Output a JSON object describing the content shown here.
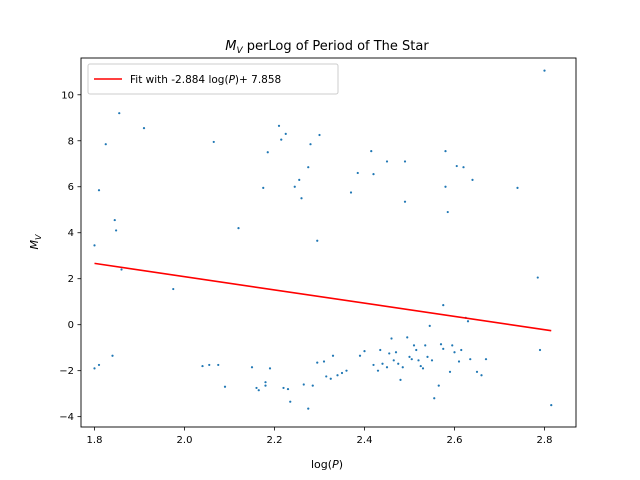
{
  "chart_data": {
    "type": "scatter",
    "title": {
      "base": "M",
      "sub": "V",
      "rest": " perLog of Period of The Star"
    },
    "xlabel": {
      "pre": "log(",
      "italic": "P",
      "post": ")"
    },
    "ylabel": {
      "base": "M",
      "sub": "V"
    },
    "xlim": [
      1.77,
      2.87
    ],
    "ylim": [
      -4.45,
      11.6
    ],
    "xticks": [
      1.8,
      2.0,
      2.2,
      2.4,
      2.6,
      2.8
    ],
    "xtick_labels": [
      "1.8",
      "2.0",
      "2.2",
      "2.4",
      "2.6",
      "2.8"
    ],
    "yticks": [
      -4,
      -2,
      0,
      2,
      4,
      6,
      8,
      10
    ],
    "ytick_labels": [
      "−4",
      "−2",
      "0",
      "2",
      "4",
      "6",
      "8",
      "10"
    ],
    "grid": false,
    "legend": {
      "placement": "top-left",
      "entries": [
        {
          "pre": "Fit with -2.884 log(",
          "italic": "P",
          "post": ")+ 7.858",
          "color": "#ff0000"
        }
      ]
    },
    "fit": {
      "slope": -2.884,
      "intercept": 7.858,
      "x_range": [
        1.8,
        2.815
      ],
      "color": "#ff0000"
    },
    "series": [
      {
        "type": "scatter",
        "color": "#1f77b4",
        "points": [
          [
            1.8,
            3.45
          ],
          [
            1.8,
            -1.9
          ],
          [
            1.81,
            5.85
          ],
          [
            1.81,
            -1.75
          ],
          [
            1.825,
            7.85
          ],
          [
            1.84,
            -1.35
          ],
          [
            1.845,
            4.55
          ],
          [
            1.848,
            4.1
          ],
          [
            1.855,
            9.2
          ],
          [
            1.86,
            2.4
          ],
          [
            1.91,
            8.55
          ],
          [
            1.975,
            1.55
          ],
          [
            2.04,
            -1.8
          ],
          [
            2.055,
            -1.75
          ],
          [
            2.065,
            7.95
          ],
          [
            2.075,
            -1.75
          ],
          [
            2.09,
            -2.7
          ],
          [
            2.12,
            4.2
          ],
          [
            2.15,
            -1.85
          ],
          [
            2.16,
            -2.75
          ],
          [
            2.165,
            -2.85
          ],
          [
            2.175,
            5.95
          ],
          [
            2.18,
            -2.65
          ],
          [
            2.18,
            -2.5
          ],
          [
            2.185,
            7.5
          ],
          [
            2.19,
            -1.9
          ],
          [
            2.21,
            8.65
          ],
          [
            2.215,
            8.05
          ],
          [
            2.22,
            -2.75
          ],
          [
            2.225,
            8.3
          ],
          [
            2.23,
            -2.8
          ],
          [
            2.235,
            -3.35
          ],
          [
            2.245,
            6.0
          ],
          [
            2.255,
            6.3
          ],
          [
            2.26,
            5.5
          ],
          [
            2.265,
            -2.6
          ],
          [
            2.275,
            6.85
          ],
          [
            2.28,
            7.85
          ],
          [
            2.285,
            -2.65
          ],
          [
            2.275,
            -3.65
          ],
          [
            2.295,
            3.65
          ],
          [
            2.295,
            -1.65
          ],
          [
            2.3,
            8.25
          ],
          [
            2.31,
            -1.6
          ],
          [
            2.315,
            -2.25
          ],
          [
            2.325,
            -2.35
          ],
          [
            2.33,
            -1.35
          ],
          [
            2.34,
            -2.2
          ],
          [
            2.35,
            -2.1
          ],
          [
            2.36,
            -2.0
          ],
          [
            2.37,
            5.75
          ],
          [
            2.385,
            6.6
          ],
          [
            2.39,
            -1.35
          ],
          [
            2.4,
            -1.15
          ],
          [
            2.415,
            7.55
          ],
          [
            2.42,
            6.55
          ],
          [
            2.42,
            -1.75
          ],
          [
            2.43,
            -2.0
          ],
          [
            2.435,
            -1.1
          ],
          [
            2.44,
            -1.7
          ],
          [
            2.45,
            -1.85
          ],
          [
            2.45,
            7.1
          ],
          [
            2.455,
            -1.25
          ],
          [
            2.46,
            -0.6
          ],
          [
            2.465,
            -1.55
          ],
          [
            2.47,
            -1.2
          ],
          [
            2.475,
            -1.7
          ],
          [
            2.48,
            -2.4
          ],
          [
            2.485,
            -1.85
          ],
          [
            2.49,
            7.1
          ],
          [
            2.49,
            5.35
          ],
          [
            2.495,
            -0.55
          ],
          [
            2.5,
            -1.4
          ],
          [
            2.505,
            -1.5
          ],
          [
            2.51,
            -0.9
          ],
          [
            2.515,
            -1.1
          ],
          [
            2.52,
            -1.55
          ],
          [
            2.525,
            -1.8
          ],
          [
            2.53,
            -1.9
          ],
          [
            2.535,
            -0.9
          ],
          [
            2.54,
            -1.4
          ],
          [
            2.545,
            -0.05
          ],
          [
            2.55,
            -1.55
          ],
          [
            2.555,
            -3.2
          ],
          [
            2.565,
            -2.65
          ],
          [
            2.57,
            -0.85
          ],
          [
            2.575,
            0.85
          ],
          [
            2.575,
            -1.05
          ],
          [
            2.58,
            7.55
          ],
          [
            2.58,
            6.0
          ],
          [
            2.585,
            4.9
          ],
          [
            2.59,
            -2.05
          ],
          [
            2.595,
            -0.9
          ],
          [
            2.6,
            -1.2
          ],
          [
            2.605,
            6.9
          ],
          [
            2.61,
            -1.6
          ],
          [
            2.615,
            -1.1
          ],
          [
            2.62,
            6.85
          ],
          [
            2.625,
            0.3
          ],
          [
            2.63,
            0.15
          ],
          [
            2.635,
            -1.5
          ],
          [
            2.64,
            6.3
          ],
          [
            2.65,
            -2.05
          ],
          [
            2.66,
            -2.2
          ],
          [
            2.67,
            -1.5
          ],
          [
            2.74,
            5.95
          ],
          [
            2.785,
            2.05
          ],
          [
            2.79,
            -1.1
          ],
          [
            2.8,
            11.05
          ],
          [
            2.815,
            -3.5
          ]
        ]
      }
    ]
  }
}
